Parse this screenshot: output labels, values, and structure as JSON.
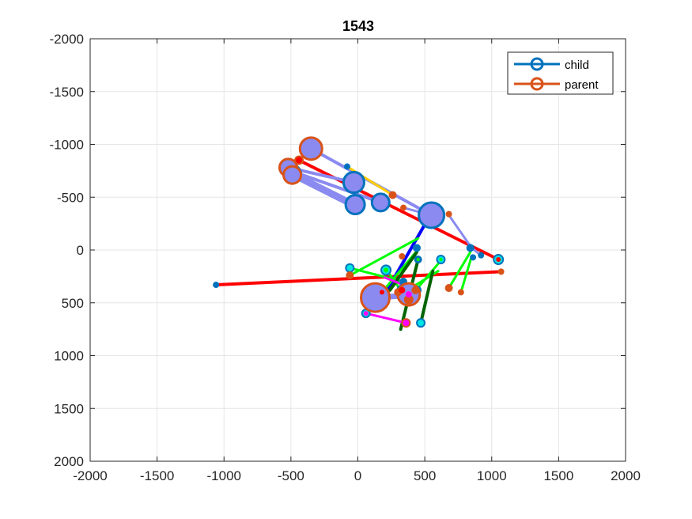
{
  "chart_data": {
    "type": "scatter",
    "title": "1543",
    "xlabel": "",
    "ylabel": "",
    "xlim": [
      -2000,
      2000
    ],
    "ylim": [
      -2000,
      2000
    ],
    "y_reversed": true,
    "grid": true,
    "xticks": [
      -2000,
      -1500,
      -1000,
      -500,
      0,
      500,
      1000,
      1500,
      2000
    ],
    "yticks": [
      -2000,
      -1500,
      -1000,
      -500,
      0,
      500,
      1000,
      1500,
      2000
    ],
    "legend": {
      "position": "top-right",
      "entries": [
        {
          "label": "child",
          "color": "#0072BD"
        },
        {
          "label": "parent",
          "color": "#D95319"
        }
      ]
    },
    "colors": {
      "child": "#0072BD",
      "parent": "#D95319",
      "fill_lavender": "#8A8AF0",
      "red": "#FF0000",
      "green": "#00FF00",
      "dark_green": "#006400",
      "blue": "#0000FF",
      "magenta": "#FF00FF",
      "yellow": "#FFCC00",
      "grid": "#E6E6E6"
    },
    "links": [
      {
        "x1": -440,
        "y1": -850,
        "x2": 1050,
        "y2": 90,
        "color": "red",
        "w": 4
      },
      {
        "x1": -1060,
        "y1": 330,
        "x2": 1070,
        "y2": 205,
        "color": "red",
        "w": 4
      },
      {
        "x1": -350,
        "y1": -960,
        "x2": 550,
        "y2": -330,
        "color": "fill_lavender",
        "w": 4
      },
      {
        "x1": -490,
        "y1": -720,
        "x2": -20,
        "y2": -420,
        "color": "fill_lavender",
        "w": 9
      },
      {
        "x1": -520,
        "y1": -780,
        "x2": -30,
        "y2": -640,
        "color": "fill_lavender",
        "w": 4
      },
      {
        "x1": -480,
        "y1": -740,
        "x2": 170,
        "y2": -450,
        "color": "fill_lavender",
        "w": 4
      },
      {
        "x1": -80,
        "y1": -790,
        "x2": 260,
        "y2": -520,
        "color": "yellow",
        "w": 3
      },
      {
        "x1": 680,
        "y1": -330,
        "x2": 850,
        "y2": -20,
        "color": "fill_lavender",
        "w": 3
      },
      {
        "x1": 850,
        "y1": -20,
        "x2": 920,
        "y2": 50,
        "color": "fill_lavender",
        "w": 3
      },
      {
        "x1": 340,
        "y1": -400,
        "x2": 550,
        "y2": -330,
        "color": "fill_lavender",
        "w": 3
      },
      {
        "x1": 210,
        "y1": 400,
        "x2": 540,
        "y2": -330,
        "color": "blue",
        "w": 4
      },
      {
        "x1": -60,
        "y1": 240,
        "x2": 450,
        "y2": -110,
        "color": "green",
        "w": 3
      },
      {
        "x1": 180,
        "y1": 400,
        "x2": 460,
        "y2": -20,
        "color": "green",
        "w": 3
      },
      {
        "x1": 380,
        "y1": 460,
        "x2": 620,
        "y2": 100,
        "color": "green",
        "w": 3
      },
      {
        "x1": 320,
        "y1": 420,
        "x2": 600,
        "y2": 200,
        "color": "green",
        "w": 3
      },
      {
        "x1": 680,
        "y1": 360,
        "x2": 840,
        "y2": 20,
        "color": "green",
        "w": 3
      },
      {
        "x1": 770,
        "y1": 400,
        "x2": 850,
        "y2": 60,
        "color": "green",
        "w": 3
      },
      {
        "x1": -60,
        "y1": 170,
        "x2": 340,
        "y2": 300,
        "color": "green",
        "w": 3
      },
      {
        "x1": 210,
        "y1": 180,
        "x2": 320,
        "y2": 380,
        "color": "green",
        "w": 3
      },
      {
        "x1": 320,
        "y1": 750,
        "x2": 450,
        "y2": 90,
        "color": "dark_green",
        "w": 4
      },
      {
        "x1": 470,
        "y1": 690,
        "x2": 560,
        "y2": 200,
        "color": "dark_green",
        "w": 4
      },
      {
        "x1": 240,
        "y1": 380,
        "x2": 440,
        "y2": 20,
        "color": "dark_green",
        "w": 4
      },
      {
        "x1": 60,
        "y1": 600,
        "x2": 360,
        "y2": 690,
        "color": "magenta",
        "w": 3
      },
      {
        "x1": 200,
        "y1": 260,
        "x2": 440,
        "y2": 380,
        "color": "magenta",
        "w": 3
      },
      {
        "x1": 130,
        "y1": 450,
        "x2": 380,
        "y2": 430,
        "color": "fill_lavender",
        "w": 7
      }
    ],
    "children": [
      {
        "x": -350,
        "y": -960,
        "r": 13
      },
      {
        "x": -490,
        "y": -720,
        "r": 11
      },
      {
        "x": -520,
        "y": -780,
        "r": 10
      },
      {
        "x": -30,
        "y": -640,
        "r": 13
      },
      {
        "x": -20,
        "y": -430,
        "r": 12
      },
      {
        "x": 170,
        "y": -450,
        "r": 11
      },
      {
        "x": 550,
        "y": -330,
        "r": 16
      },
      {
        "x": -80,
        "y": -790,
        "r": 3
      },
      {
        "x": 1050,
        "y": 90,
        "r": 6
      },
      {
        "x": 840,
        "y": -20,
        "r": 4
      },
      {
        "x": 920,
        "y": 50,
        "r": 3
      },
      {
        "x": -1060,
        "y": 330,
        "r": 3
      },
      {
        "x": 440,
        "y": -20,
        "r": 4
      },
      {
        "x": 450,
        "y": 90,
        "r": 4
      },
      {
        "x": 620,
        "y": 90,
        "r": 5
      },
      {
        "x": 860,
        "y": 70,
        "r": 3
      },
      {
        "x": -60,
        "y": 170,
        "r": 5
      },
      {
        "x": 210,
        "y": 190,
        "r": 6
      },
      {
        "x": 130,
        "y": 450,
        "r": 17
      },
      {
        "x": 380,
        "y": 420,
        "r": 13
      },
      {
        "x": 60,
        "y": 600,
        "r": 5
      },
      {
        "x": 470,
        "y": 690,
        "r": 5
      },
      {
        "x": 330,
        "y": 380,
        "r": 6
      },
      {
        "x": 440,
        "y": 380,
        "r": 5
      },
      {
        "x": 340,
        "y": 300,
        "r": 4
      }
    ],
    "parents": [
      {
        "x": -350,
        "y": -960,
        "r": 14
      },
      {
        "x": -440,
        "y": -850,
        "r": 5
      },
      {
        "x": -520,
        "y": -780,
        "r": 11
      },
      {
        "x": -490,
        "y": -710,
        "r": 11
      },
      {
        "x": 260,
        "y": -520,
        "r": 4
      },
      {
        "x": 340,
        "y": -400,
        "r": 3
      },
      {
        "x": 680,
        "y": -340,
        "r": 3
      },
      {
        "x": 1070,
        "y": 205,
        "r": 3
      },
      {
        "x": -60,
        "y": 240,
        "r": 4
      },
      {
        "x": 180,
        "y": 400,
        "r": 5
      },
      {
        "x": 330,
        "y": 60,
        "r": 3
      },
      {
        "x": 680,
        "y": 360,
        "r": 4
      },
      {
        "x": 770,
        "y": 400,
        "r": 3
      },
      {
        "x": 360,
        "y": 690,
        "r": 5
      },
      {
        "x": 130,
        "y": 450,
        "r": 18
      },
      {
        "x": 380,
        "y": 420,
        "r": 14
      },
      {
        "x": 380,
        "y": 470,
        "r": 5
      },
      {
        "x": 430,
        "y": 380,
        "r": 4
      },
      {
        "x": 300,
        "y": 400,
        "r": 4
      }
    ],
    "markers": [
      {
        "x": -440,
        "y": -850,
        "r": 4,
        "color": "red"
      },
      {
        "x": 1050,
        "y": 90,
        "r": 3,
        "color": "red"
      },
      {
        "x": 360,
        "y": 690,
        "r": 4,
        "color": "magenta"
      },
      {
        "x": 60,
        "y": 600,
        "r": 3,
        "color": "magenta"
      },
      {
        "x": 210,
        "y": 190,
        "r": 3,
        "color": "green"
      },
      {
        "x": 450,
        "y": 90,
        "r": 2,
        "color": "green"
      },
      {
        "x": 330,
        "y": 380,
        "r": 4,
        "color": "red"
      },
      {
        "x": 380,
        "y": 420,
        "r": 4,
        "color": "magenta"
      },
      {
        "x": 180,
        "y": 400,
        "r": 3,
        "color": "red"
      },
      {
        "x": 620,
        "y": 90,
        "r": 2,
        "color": "green"
      }
    ]
  }
}
